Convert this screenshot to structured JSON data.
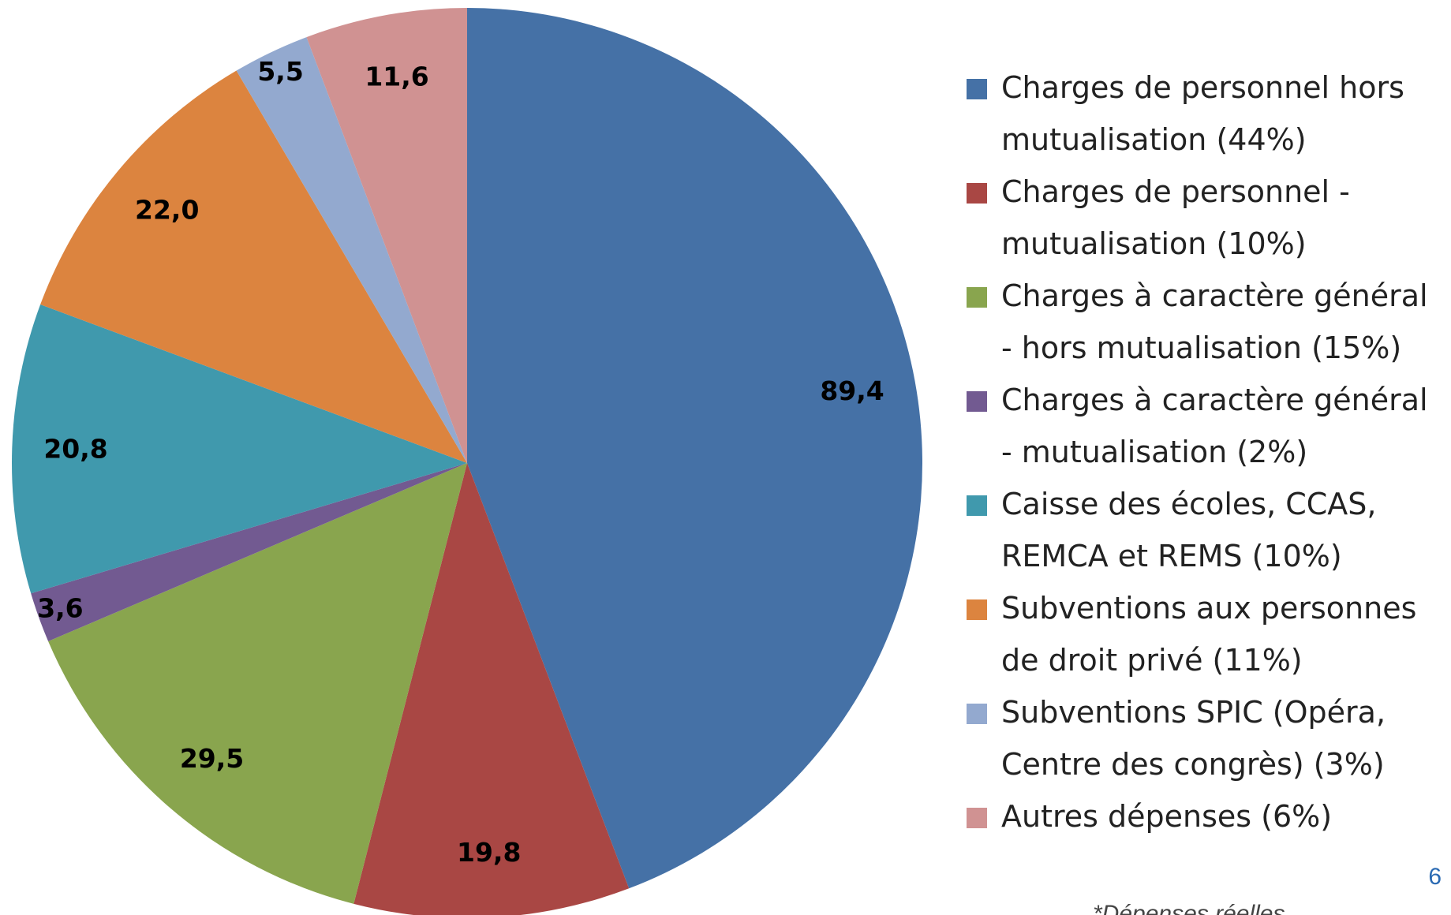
{
  "chart_data": {
    "type": "pie",
    "categories": [
      "Charges de personnel hors mutualisation (44%)",
      "Charges de personnel - mutualisation (10%)",
      "Charges à caractère général - hors mutualisation (15%)",
      "Charges à caractère général - mutualisation (2%)",
      "Caisse des écoles, CCAS, REMCA et REMS (10%)",
      "Subventions aux personnes de droit privé (11%)",
      "Subventions SPIC (Opéra, Centre des congrès) (3%)",
      "Autres dépenses (6%)"
    ],
    "values": [
      89.4,
      19.8,
      29.5,
      3.6,
      20.8,
      22.0,
      5.5,
      11.6
    ],
    "value_labels": [
      "89,4",
      "19,8",
      "29,5",
      "3,6",
      "20,8",
      "22,0",
      "5,5",
      "11,6"
    ],
    "colors": [
      "#4571a6",
      "#a94744",
      "#89a54e",
      "#725a91",
      "#4099ad",
      "#dc843f",
      "#93a9cf",
      "#d09292"
    ],
    "legend": "right"
  },
  "page_number": "6",
  "note": "*Dépenses réelles"
}
